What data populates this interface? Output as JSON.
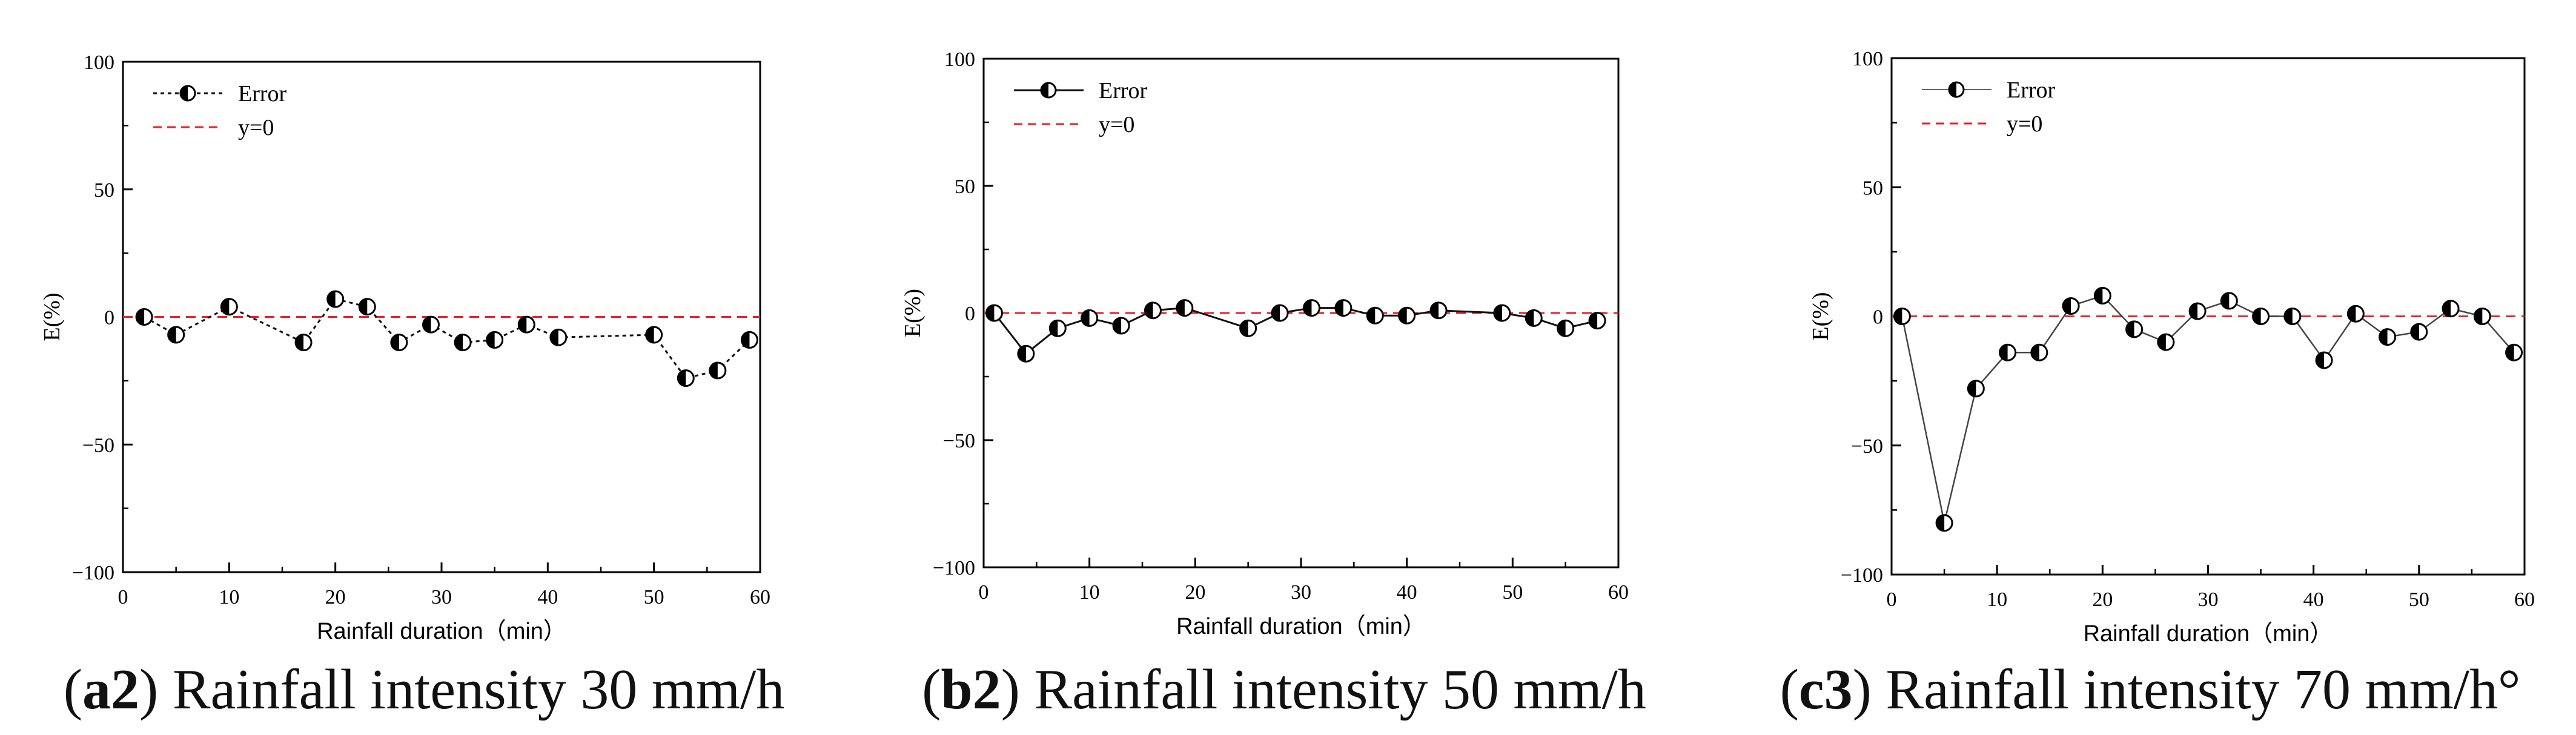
{
  "chart_data": [
    {
      "type": "line",
      "caption_id": "a2",
      "caption_text": " Rainfall intensity 30 mm/h",
      "xlabel": "Rainfall duration（min）",
      "ylabel": "E(%)",
      "xlim": [
        0,
        60
      ],
      "ylim": [
        -100,
        100
      ],
      "xticks": [
        "0",
        "10",
        "20",
        "30",
        "40",
        "50",
        "60"
      ],
      "yticks": [
        "100",
        "50",
        "0",
        "−50",
        "−100"
      ],
      "legend": [
        {
          "label": "Error",
          "style": "dotted"
        },
        {
          "label": "y=0",
          "style": "red-dashed"
        }
      ],
      "series": [
        {
          "name": "Error",
          "x": [
            2,
            5,
            10,
            17,
            20,
            23,
            26,
            29,
            32,
            35,
            38,
            41,
            50,
            53,
            56,
            59
          ],
          "y": [
            0,
            -7,
            4,
            -10,
            7,
            4,
            -10,
            -3,
            -10,
            -9,
            -3,
            -8,
            -7,
            -24,
            -21,
            -9
          ]
        },
        {
          "name": "y=0",
          "x": [
            0,
            60
          ],
          "y": [
            0,
            0
          ]
        }
      ]
    },
    {
      "type": "line",
      "caption_id": "b2",
      "caption_text": " Rainfall intensity 50 mm/h",
      "xlabel": "Rainfall duration（min）",
      "ylabel": "E(%)",
      "xlim": [
        0,
        60
      ],
      "ylim": [
        -100,
        100
      ],
      "xticks": [
        "0",
        "10",
        "20",
        "30",
        "40",
        "50",
        "60"
      ],
      "yticks": [
        "100",
        "50",
        "0",
        "−50",
        "−100"
      ],
      "legend": [
        {
          "label": "Error",
          "style": "solid"
        },
        {
          "label": "y=0",
          "style": "red-dashed"
        }
      ],
      "series": [
        {
          "name": "Error",
          "x": [
            1,
            4,
            7,
            10,
            13,
            16,
            19,
            25,
            28,
            31,
            34,
            37,
            40,
            43,
            49,
            52,
            55,
            58
          ],
          "y": [
            0,
            -16,
            -6,
            -2,
            -5,
            1,
            2,
            -6,
            0,
            2,
            2,
            -1,
            -1,
            1,
            0,
            -2,
            -6,
            -3
          ]
        },
        {
          "name": "y=0",
          "x": [
            0,
            60
          ],
          "y": [
            0,
            0
          ]
        }
      ]
    },
    {
      "type": "line",
      "caption_id": "c3",
      "caption_text": " Rainfall intensity 70 mm/h°",
      "xlabel": "Rainfall duration（min）",
      "ylabel": "E(%)",
      "xlim": [
        0,
        60
      ],
      "ylim": [
        -100,
        100
      ],
      "xticks": [
        "0",
        "10",
        "20",
        "30",
        "40",
        "50",
        "60"
      ],
      "yticks": [
        "100",
        "50",
        "0",
        "−50",
        "−100"
      ],
      "legend": [
        {
          "label": "Error",
          "style": "thin-solid"
        },
        {
          "label": "y=0",
          "style": "red-dashed"
        }
      ],
      "series": [
        {
          "name": "Error",
          "x": [
            1,
            5,
            8,
            11,
            14,
            17,
            20,
            23,
            26,
            29,
            32,
            35,
            38,
            41,
            44,
            47,
            50,
            53,
            56,
            59
          ],
          "y": [
            0,
            -80,
            -28,
            -14,
            -14,
            4,
            8,
            -5,
            -10,
            2,
            6,
            0,
            0,
            -17,
            1,
            -8,
            -6,
            3,
            0,
            -14
          ]
        },
        {
          "name": "y=0",
          "x": [
            0,
            60
          ],
          "y": [
            0,
            0
          ]
        }
      ]
    }
  ]
}
